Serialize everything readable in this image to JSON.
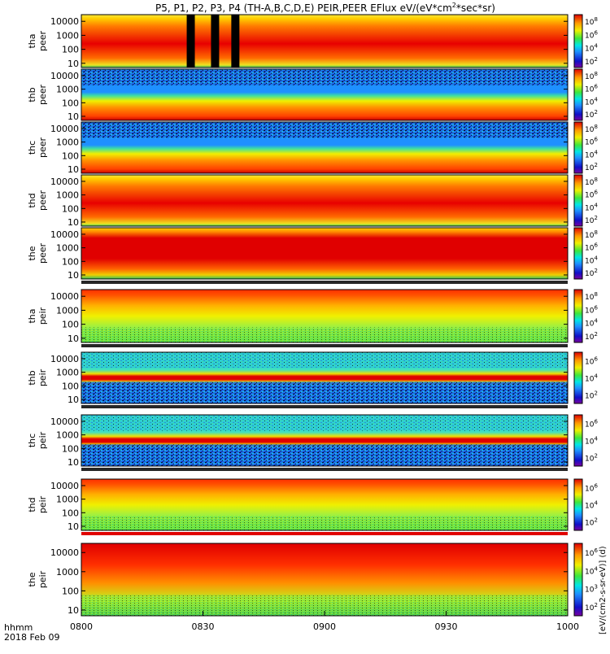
{
  "header": {
    "title": "P5, P1, P2, P3, P4 (TH-A,B,C,D,E) PEIR,PEER EFlux eV/(eV*cm",
    "title_sup": "2",
    "title_end": "*sec*sr)"
  },
  "time_axis": {
    "start": "0800",
    "end": "1000",
    "tick_labels": [
      "0800",
      "0830",
      "0900",
      "0930",
      "1000"
    ],
    "label": "hhmm",
    "date": "2018 Feb 09"
  },
  "colorbar_unit": "[eV/(cm2-s-sr-eV)] (d)",
  "chart_data": {
    "type": "heatmap",
    "x_unit": "UT hhmm",
    "xlim": [
      "0800",
      "1000"
    ],
    "y_scale": "log",
    "y_unit": "eV",
    "ylim": [
      5,
      30000
    ],
    "y_ticks": [
      10,
      100,
      1000,
      10000
    ],
    "z_scale": "log",
    "colormap": "rainbow (purple-blue-cyan-green-yellow-red)",
    "panels": [
      {
        "probe": "tha",
        "species": "peer",
        "ylabel_1": "tha",
        "ylabel_2": "peer",
        "cbar_ticks": [
          "10",
          "10",
          "10",
          "10"
        ],
        "cbar_exps": [
          "8",
          "6",
          "4",
          "2"
        ],
        "mode": "eh",
        "data_gaps": [
          "0826-0828",
          "0832-0834",
          "0837-0839"
        ]
      },
      {
        "probe": "thb",
        "species": "peer",
        "ylabel_1": "thb",
        "ylabel_2": "peer",
        "cbar_ticks": [
          "10",
          "10",
          "10",
          "10"
        ],
        "cbar_exps": [
          "8",
          "6",
          "4",
          "2"
        ],
        "mode": "ei"
      },
      {
        "probe": "thc",
        "species": "peer",
        "ylabel_1": "thc",
        "ylabel_2": "peer",
        "cbar_ticks": [
          "10",
          "10",
          "10",
          "10"
        ],
        "cbar_exps": [
          "8",
          "6",
          "4",
          "2"
        ],
        "mode": "ei"
      },
      {
        "probe": "thd",
        "species": "peer",
        "ylabel_1": "thd",
        "ylabel_2": "peer",
        "cbar_ticks": [
          "10",
          "10",
          "10",
          "10"
        ],
        "cbar_exps": [
          "8",
          "6",
          "4",
          "2"
        ],
        "mode": "eh"
      },
      {
        "probe": "the",
        "species": "peer",
        "ylabel_1": "the",
        "ylabel_2": "peer",
        "cbar_ticks": [
          "10",
          "10",
          "10",
          "10"
        ],
        "cbar_exps": [
          "8",
          "6",
          "4",
          "2"
        ],
        "mode": "ee"
      },
      {
        "probe": "tha",
        "species": "peir",
        "ylabel_1": "tha",
        "ylabel_2": "peir",
        "cbar_ticks": [
          "10",
          "10",
          "10",
          "10"
        ],
        "cbar_exps": [
          "8",
          "6",
          "4",
          "2"
        ],
        "mode": "ih"
      },
      {
        "probe": "thb",
        "species": "peir",
        "ylabel_1": "thb",
        "ylabel_2": "peir",
        "cbar_ticks": [
          "10",
          "10",
          "10"
        ],
        "cbar_exps": [
          "6",
          "4",
          "2"
        ],
        "mode": "iband"
      },
      {
        "probe": "thc",
        "species": "peir",
        "ylabel_1": "thc",
        "ylabel_2": "peir",
        "cbar_ticks": [
          "10",
          "10",
          "10"
        ],
        "cbar_exps": [
          "6",
          "4",
          "2"
        ],
        "mode": "iband"
      },
      {
        "probe": "thd",
        "species": "peir",
        "ylabel_1": "thd",
        "ylabel_2": "peir",
        "cbar_ticks": [
          "10",
          "10",
          "10"
        ],
        "cbar_exps": [
          "6",
          "4",
          "2"
        ],
        "mode": "ih"
      },
      {
        "probe": "the",
        "species": "peir",
        "ylabel_1": "the",
        "ylabel_2": "peir",
        "cbar_ticks": [
          "10",
          "10",
          "10",
          "10"
        ],
        "cbar_exps": [
          "6",
          "4",
          "3",
          "2"
        ],
        "mode": "ie"
      }
    ]
  }
}
